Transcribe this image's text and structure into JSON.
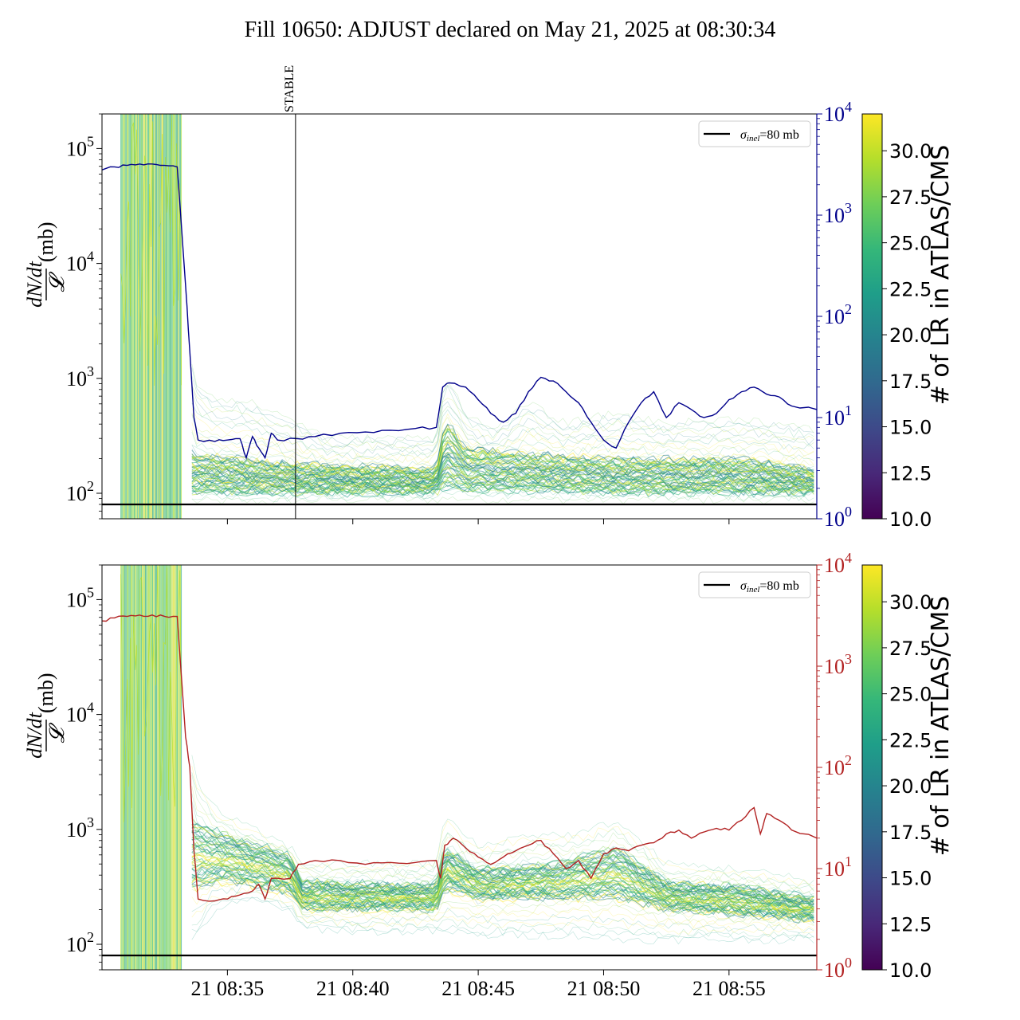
{
  "title": "Fill 10650: ADJUST declared on May 21, 2025 at 08:30:34",
  "colors": {
    "top_secondary": "#00008b",
    "bottom_secondary": "#b22222",
    "viridis": [
      "#440154",
      "#482878",
      "#3e4989",
      "#31688e",
      "#26828e",
      "#1f9e89",
      "#35b779",
      "#6ece58",
      "#b5de2b",
      "#fde725"
    ]
  },
  "chart_data": [
    {
      "type": "line",
      "panel": "top",
      "ylabel_expr": "dN/dt",
      "ylabel_den": "𝓛",
      "ylabel_unit": "(mb)",
      "y_scale": "log",
      "ylim": [
        60,
        200000
      ],
      "y_ticks": [
        {
          "value": 100,
          "base": "10",
          "exp": "2"
        },
        {
          "value": 1000,
          "base": "10",
          "exp": "3"
        },
        {
          "value": 10000,
          "base": "10",
          "exp": "4"
        },
        {
          "value": 100000,
          "base": "10",
          "exp": "5"
        }
      ],
      "x_start": "08:30:00",
      "x_end": "08:58:30",
      "x_ticks": [
        "21 08:35",
        "21 08:40",
        "21 08:45",
        "21 08:50",
        "21 08:55"
      ],
      "show_x_tick_labels": false,
      "reference_line": {
        "label": "σinel=80 mb",
        "label_main": "σ",
        "label_sub": "inel",
        "label_rest": "=80 mb",
        "value": 80
      },
      "vline": {
        "label": "STABLE",
        "time": "08:37:43"
      },
      "secondary_axis": {
        "scale": "log",
        "ylim": [
          1,
          10000
        ],
        "ticks": [
          {
            "value": 1,
            "base": "10",
            "exp": "0"
          },
          {
            "value": 10,
            "base": "10",
            "exp": "1"
          },
          {
            "value": 100,
            "base": "10",
            "exp": "2"
          },
          {
            "value": 1000,
            "base": "10",
            "exp": "3"
          },
          {
            "value": 10000,
            "base": "10",
            "exp": "4"
          }
        ],
        "color": "#00008b"
      },
      "secondary_series": [
        {
          "t": "08:30:00",
          "v": 2800
        },
        {
          "t": "08:30:30",
          "v": 3000
        },
        {
          "t": "08:31:00",
          "v": 3100
        },
        {
          "t": "08:31:30",
          "v": 3200
        },
        {
          "t": "08:32:00",
          "v": 3200
        },
        {
          "t": "08:32:30",
          "v": 3100
        },
        {
          "t": "08:33:00",
          "v": 3000
        },
        {
          "t": "08:33:20",
          "v": 200
        },
        {
          "t": "08:33:30",
          "v": 45
        },
        {
          "t": "08:33:40",
          "v": 10
        },
        {
          "t": "08:33:50",
          "v": 6
        },
        {
          "t": "08:34:30",
          "v": 5.8
        },
        {
          "t": "08:35:00",
          "v": 6
        },
        {
          "t": "08:35:30",
          "v": 6.2
        },
        {
          "t": "08:35:45",
          "v": 4
        },
        {
          "t": "08:36:00",
          "v": 6.5
        },
        {
          "t": "08:36:15",
          "v": 5
        },
        {
          "t": "08:36:30",
          "v": 4
        },
        {
          "t": "08:36:45",
          "v": 7
        },
        {
          "t": "08:37:00",
          "v": 6
        },
        {
          "t": "08:37:45",
          "v": 6.2
        },
        {
          "t": "08:38:30",
          "v": 6.5
        },
        {
          "t": "08:39:30",
          "v": 7
        },
        {
          "t": "08:40:30",
          "v": 7.2
        },
        {
          "t": "08:41:30",
          "v": 7.5
        },
        {
          "t": "08:42:30",
          "v": 7.8
        },
        {
          "t": "08:43:20",
          "v": 8
        },
        {
          "t": "08:43:35",
          "v": 20
        },
        {
          "t": "08:43:50",
          "v": 22
        },
        {
          "t": "08:44:30",
          "v": 20
        },
        {
          "t": "08:45:00",
          "v": 15
        },
        {
          "t": "08:45:30",
          "v": 11
        },
        {
          "t": "08:46:00",
          "v": 9
        },
        {
          "t": "08:46:30",
          "v": 11
        },
        {
          "t": "08:47:00",
          "v": 18
        },
        {
          "t": "08:47:30",
          "v": 25
        },
        {
          "t": "08:48:00",
          "v": 23
        },
        {
          "t": "08:48:30",
          "v": 18
        },
        {
          "t": "08:49:00",
          "v": 14
        },
        {
          "t": "08:49:30",
          "v": 9
        },
        {
          "t": "08:50:00",
          "v": 6
        },
        {
          "t": "08:50:30",
          "v": 5
        },
        {
          "t": "08:51:00",
          "v": 9
        },
        {
          "t": "08:51:30",
          "v": 14
        },
        {
          "t": "08:52:00",
          "v": 18
        },
        {
          "t": "08:52:30",
          "v": 10
        },
        {
          "t": "08:53:00",
          "v": 14
        },
        {
          "t": "08:53:30",
          "v": 12
        },
        {
          "t": "08:54:00",
          "v": 10
        },
        {
          "t": "08:54:30",
          "v": 11
        },
        {
          "t": "08:55:00",
          "v": 15
        },
        {
          "t": "08:55:30",
          "v": 18
        },
        {
          "t": "08:56:00",
          "v": 20
        },
        {
          "t": "08:56:30",
          "v": 17
        },
        {
          "t": "08:57:00",
          "v": 16
        },
        {
          "t": "08:57:30",
          "v": 13
        },
        {
          "t": "08:58:30",
          "v": 12
        }
      ],
      "band_series": [
        {
          "t": "08:30:45",
          "lo": 60,
          "hi": 200000
        },
        {
          "t": "08:33:10",
          "lo": 60,
          "hi": 200000
        },
        {
          "t": "08:33:25",
          "lo": 90,
          "hi": 3000
        },
        {
          "t": "08:33:40",
          "lo": 85,
          "hi": 900
        },
        {
          "t": "08:34:30",
          "lo": 85,
          "hi": 700
        },
        {
          "t": "08:36:00",
          "lo": 85,
          "hi": 600
        },
        {
          "t": "08:37:30",
          "lo": 85,
          "hi": 450
        },
        {
          "t": "08:39:00",
          "lo": 88,
          "hi": 300
        },
        {
          "t": "08:41:00",
          "lo": 88,
          "hi": 300
        },
        {
          "t": "08:43:20",
          "lo": 88,
          "hi": 300
        },
        {
          "t": "08:43:40",
          "lo": 90,
          "hi": 1100
        },
        {
          "t": "08:44:30",
          "lo": 90,
          "hi": 500
        },
        {
          "t": "08:45:30",
          "lo": 88,
          "hi": 350
        },
        {
          "t": "08:47:00",
          "lo": 90,
          "hi": 600
        },
        {
          "t": "08:48:30",
          "lo": 88,
          "hi": 400
        },
        {
          "t": "08:50:30",
          "lo": 88,
          "hi": 500
        },
        {
          "t": "08:52:30",
          "lo": 88,
          "hi": 400
        },
        {
          "t": "08:55:30",
          "lo": 88,
          "hi": 450
        },
        {
          "t": "08:58:30",
          "lo": 88,
          "hi": 350
        }
      ],
      "band_core": [
        {
          "t": "08:33:40",
          "lo": 100,
          "hi": 220
        },
        {
          "t": "08:37:30",
          "lo": 100,
          "hi": 180
        },
        {
          "t": "08:43:20",
          "lo": 100,
          "hi": 160
        },
        {
          "t": "08:43:40",
          "lo": 110,
          "hi": 450
        },
        {
          "t": "08:44:30",
          "lo": 105,
          "hi": 250
        },
        {
          "t": "08:47:00",
          "lo": 105,
          "hi": 220
        },
        {
          "t": "08:50:30",
          "lo": 100,
          "hi": 200
        },
        {
          "t": "08:55:30",
          "lo": 100,
          "hi": 200
        },
        {
          "t": "08:58:30",
          "lo": 100,
          "hi": 160
        }
      ]
    },
    {
      "type": "line",
      "panel": "bottom",
      "ylabel_expr": "dN/dt",
      "ylabel_den": "𝓛",
      "ylabel_unit": "(mb)",
      "y_scale": "log",
      "ylim": [
        60,
        200000
      ],
      "y_ticks": [
        {
          "value": 100,
          "base": "10",
          "exp": "2"
        },
        {
          "value": 1000,
          "base": "10",
          "exp": "3"
        },
        {
          "value": 10000,
          "base": "10",
          "exp": "4"
        },
        {
          "value": 100000,
          "base": "10",
          "exp": "5"
        }
      ],
      "x_start": "08:30:00",
      "x_end": "08:58:30",
      "x_ticks": [
        "21 08:35",
        "21 08:40",
        "21 08:45",
        "21 08:50",
        "21 08:55"
      ],
      "show_x_tick_labels": true,
      "reference_line": {
        "label": "σinel=80 mb",
        "label_main": "σ",
        "label_sub": "inel",
        "label_rest": "=80 mb",
        "value": 80
      },
      "secondary_axis": {
        "scale": "log",
        "ylim": [
          1,
          10000
        ],
        "ticks": [
          {
            "value": 1,
            "base": "10",
            "exp": "0"
          },
          {
            "value": 10,
            "base": "10",
            "exp": "1"
          },
          {
            "value": 100,
            "base": "10",
            "exp": "2"
          },
          {
            "value": 1000,
            "base": "10",
            "exp": "3"
          },
          {
            "value": 10000,
            "base": "10",
            "exp": "4"
          }
        ],
        "color": "#b22222"
      },
      "secondary_series": [
        {
          "t": "08:30:00",
          "v": 2800
        },
        {
          "t": "08:30:30",
          "v": 3000
        },
        {
          "t": "08:31:00",
          "v": 3100
        },
        {
          "t": "08:31:30",
          "v": 3200
        },
        {
          "t": "08:32:00",
          "v": 3200
        },
        {
          "t": "08:32:30",
          "v": 3100
        },
        {
          "t": "08:33:00",
          "v": 3100
        },
        {
          "t": "08:33:20",
          "v": 200
        },
        {
          "t": "08:33:30",
          "v": 100
        },
        {
          "t": "08:33:40",
          "v": 15
        },
        {
          "t": "08:33:50",
          "v": 5
        },
        {
          "t": "08:34:30",
          "v": 4.8
        },
        {
          "t": "08:35:00",
          "v": 5
        },
        {
          "t": "08:35:30",
          "v": 5.5
        },
        {
          "t": "08:36:00",
          "v": 6
        },
        {
          "t": "08:36:15",
          "v": 7
        },
        {
          "t": "08:36:30",
          "v": 5
        },
        {
          "t": "08:36:45",
          "v": 8
        },
        {
          "t": "08:37:30",
          "v": 8
        },
        {
          "t": "08:37:50",
          "v": 11
        },
        {
          "t": "08:38:30",
          "v": 12
        },
        {
          "t": "08:39:30",
          "v": 12
        },
        {
          "t": "08:40:30",
          "v": 11
        },
        {
          "t": "08:41:30",
          "v": 11.5
        },
        {
          "t": "08:42:30",
          "v": 11.5
        },
        {
          "t": "08:43:20",
          "v": 12
        },
        {
          "t": "08:43:30",
          "v": 8
        },
        {
          "t": "08:43:40",
          "v": 17
        },
        {
          "t": "08:44:00",
          "v": 20
        },
        {
          "t": "08:44:30",
          "v": 16
        },
        {
          "t": "08:45:00",
          "v": 13
        },
        {
          "t": "08:45:30",
          "v": 11
        },
        {
          "t": "08:46:00",
          "v": 13
        },
        {
          "t": "08:46:30",
          "v": 15
        },
        {
          "t": "08:47:00",
          "v": 17
        },
        {
          "t": "08:47:30",
          "v": 19
        },
        {
          "t": "08:48:00",
          "v": 14
        },
        {
          "t": "08:48:30",
          "v": 10
        },
        {
          "t": "08:49:00",
          "v": 12
        },
        {
          "t": "08:49:30",
          "v": 8
        },
        {
          "t": "08:50:00",
          "v": 14
        },
        {
          "t": "08:50:30",
          "v": 16
        },
        {
          "t": "08:51:00",
          "v": 15
        },
        {
          "t": "08:51:30",
          "v": 17
        },
        {
          "t": "08:52:00",
          "v": 18
        },
        {
          "t": "08:52:30",
          "v": 22
        },
        {
          "t": "08:53:00",
          "v": 24
        },
        {
          "t": "08:53:30",
          "v": 20
        },
        {
          "t": "08:54:00",
          "v": 23
        },
        {
          "t": "08:54:30",
          "v": 25
        },
        {
          "t": "08:55:00",
          "v": 24
        },
        {
          "t": "08:55:30",
          "v": 30
        },
        {
          "t": "08:56:00",
          "v": 40
        },
        {
          "t": "08:56:15",
          "v": 22
        },
        {
          "t": "08:56:30",
          "v": 35
        },
        {
          "t": "08:57:00",
          "v": 30
        },
        {
          "t": "08:57:30",
          "v": 24
        },
        {
          "t": "08:58:30",
          "v": 20
        }
      ],
      "band_series": [
        {
          "t": "08:30:45",
          "lo": 60,
          "hi": 200000
        },
        {
          "t": "08:33:10",
          "lo": 60,
          "hi": 200000
        },
        {
          "t": "08:33:25",
          "lo": 100,
          "hi": 10000
        },
        {
          "t": "08:33:40",
          "lo": 110,
          "hi": 3000
        },
        {
          "t": "08:34:30",
          "lo": 200,
          "hi": 1500
        },
        {
          "t": "08:36:00",
          "lo": 250,
          "hi": 1000
        },
        {
          "t": "08:37:30",
          "lo": 200,
          "hi": 700
        },
        {
          "t": "08:38:00",
          "lo": 140,
          "hi": 500
        },
        {
          "t": "08:40:00",
          "lo": 130,
          "hi": 500
        },
        {
          "t": "08:43:20",
          "lo": 130,
          "hi": 500
        },
        {
          "t": "08:43:40",
          "lo": 130,
          "hi": 1300
        },
        {
          "t": "08:45:00",
          "lo": 120,
          "hi": 700
        },
        {
          "t": "08:47:00",
          "lo": 120,
          "hi": 900
        },
        {
          "t": "08:49:00",
          "lo": 120,
          "hi": 900
        },
        {
          "t": "08:50:30",
          "lo": 110,
          "hi": 1200
        },
        {
          "t": "08:52:30",
          "lo": 110,
          "hi": 500
        },
        {
          "t": "08:55:30",
          "lo": 110,
          "hi": 450
        },
        {
          "t": "08:58:30",
          "lo": 110,
          "hi": 350
        }
      ],
      "band_core": [
        {
          "t": "08:33:40",
          "lo": 300,
          "hi": 1200
        },
        {
          "t": "08:35:00",
          "lo": 350,
          "hi": 900
        },
        {
          "t": "08:37:30",
          "lo": 280,
          "hi": 600
        },
        {
          "t": "08:38:00",
          "lo": 200,
          "hi": 350
        },
        {
          "t": "08:43:20",
          "lo": 200,
          "hi": 330
        },
        {
          "t": "08:43:40",
          "lo": 300,
          "hi": 700
        },
        {
          "t": "08:45:00",
          "lo": 250,
          "hi": 450
        },
        {
          "t": "08:48:00",
          "lo": 250,
          "hi": 500
        },
        {
          "t": "08:50:30",
          "lo": 250,
          "hi": 700
        },
        {
          "t": "08:52:30",
          "lo": 200,
          "hi": 350
        },
        {
          "t": "08:55:30",
          "lo": 180,
          "hi": 320
        },
        {
          "t": "08:58:30",
          "lo": 160,
          "hi": 250
        }
      ]
    }
  ],
  "colorbar": {
    "label": "# of LR in ATLAS/CMS",
    "range": [
      10,
      32
    ],
    "ticks": [
      "10.0",
      "12.5",
      "15.0",
      "17.5",
      "20.0",
      "22.5",
      "25.0",
      "27.5",
      "30.0"
    ]
  }
}
